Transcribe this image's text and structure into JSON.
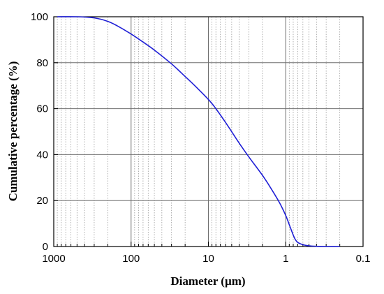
{
  "chart_data": {
    "type": "line",
    "title": "",
    "xlabel": "Diameter (µm)",
    "ylabel": "Cumulative percentage (%)",
    "x_scale": "log",
    "x_reversed": true,
    "xlim": [
      1000,
      0.1
    ],
    "ylim": [
      0,
      100
    ],
    "x_ticks": [
      1000,
      100,
      10,
      1,
      0.1
    ],
    "x_tick_labels": [
      "1000",
      "100",
      "10",
      "1",
      "0.1"
    ],
    "y_ticks": [
      0,
      20,
      40,
      60,
      80,
      100
    ],
    "y_tick_labels": [
      "0",
      "20",
      "40",
      "60",
      "80",
      "100"
    ],
    "grid": {
      "major": true,
      "minor_x": true
    },
    "line_color": "#1f1fd6",
    "series": [
      {
        "x": [
          900,
          500,
          300,
          200,
          150,
          100,
          70,
          50,
          30,
          20,
          15,
          10,
          8,
          6,
          4,
          3,
          2,
          1.5,
          1.2,
          1.0,
          0.9,
          0.8,
          0.75,
          0.7,
          0.6,
          0.5,
          0.4,
          0.3,
          0.2
        ],
        "y": [
          100,
          100,
          99.5,
          98,
          96,
          92.5,
          89,
          85.5,
          79.5,
          74,
          70,
          64,
          60,
          54,
          45,
          39,
          31,
          24.5,
          19,
          13.5,
          9.5,
          5,
          3,
          1.8,
          0.8,
          0.3,
          0.1,
          0,
          0
        ]
      }
    ]
  }
}
